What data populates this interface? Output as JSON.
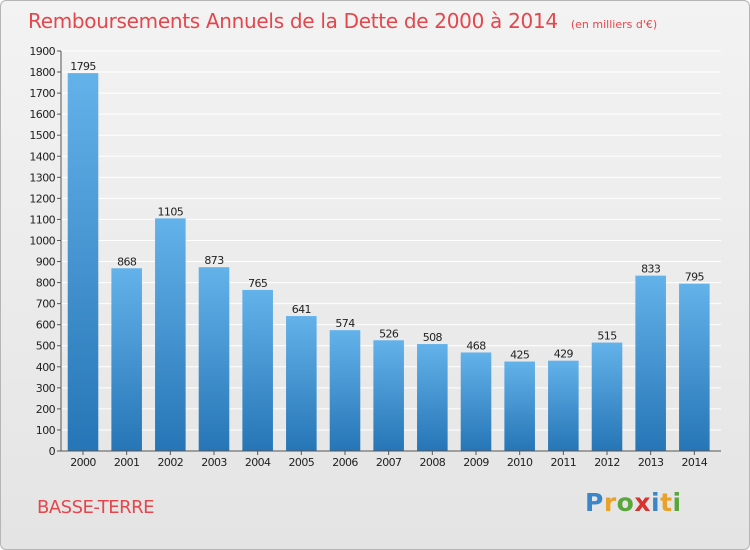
{
  "title": "Remboursements Annuels de la Dette de 2000 à 2014",
  "subtitle": "(en milliers d'€)",
  "commune": "BASSE-TERRE",
  "logo": {
    "text": "Proxiti",
    "colors": [
      "#3a86c8",
      "#e8a22a",
      "#5aa63c",
      "#d9332f",
      "#3a86c8",
      "#e8a22a",
      "#5aa63c"
    ]
  },
  "colors": {
    "title": "#e4464c",
    "bar_light": "#64b2ea",
    "bar_dark": "#2675b6",
    "axis": "#555555",
    "grid": "#ffffff"
  },
  "chart_data": {
    "type": "bar",
    "categories": [
      "2000",
      "2001",
      "2002",
      "2003",
      "2004",
      "2005",
      "2006",
      "2007",
      "2008",
      "2009",
      "2010",
      "2011",
      "2012",
      "2013",
      "2014"
    ],
    "values": [
      1795,
      868,
      1105,
      873,
      765,
      641,
      574,
      526,
      508,
      468,
      425,
      429,
      515,
      833,
      795
    ],
    "ylim": [
      0,
      1900
    ],
    "ytick_step": 100,
    "grid": true,
    "data_labels": true
  }
}
